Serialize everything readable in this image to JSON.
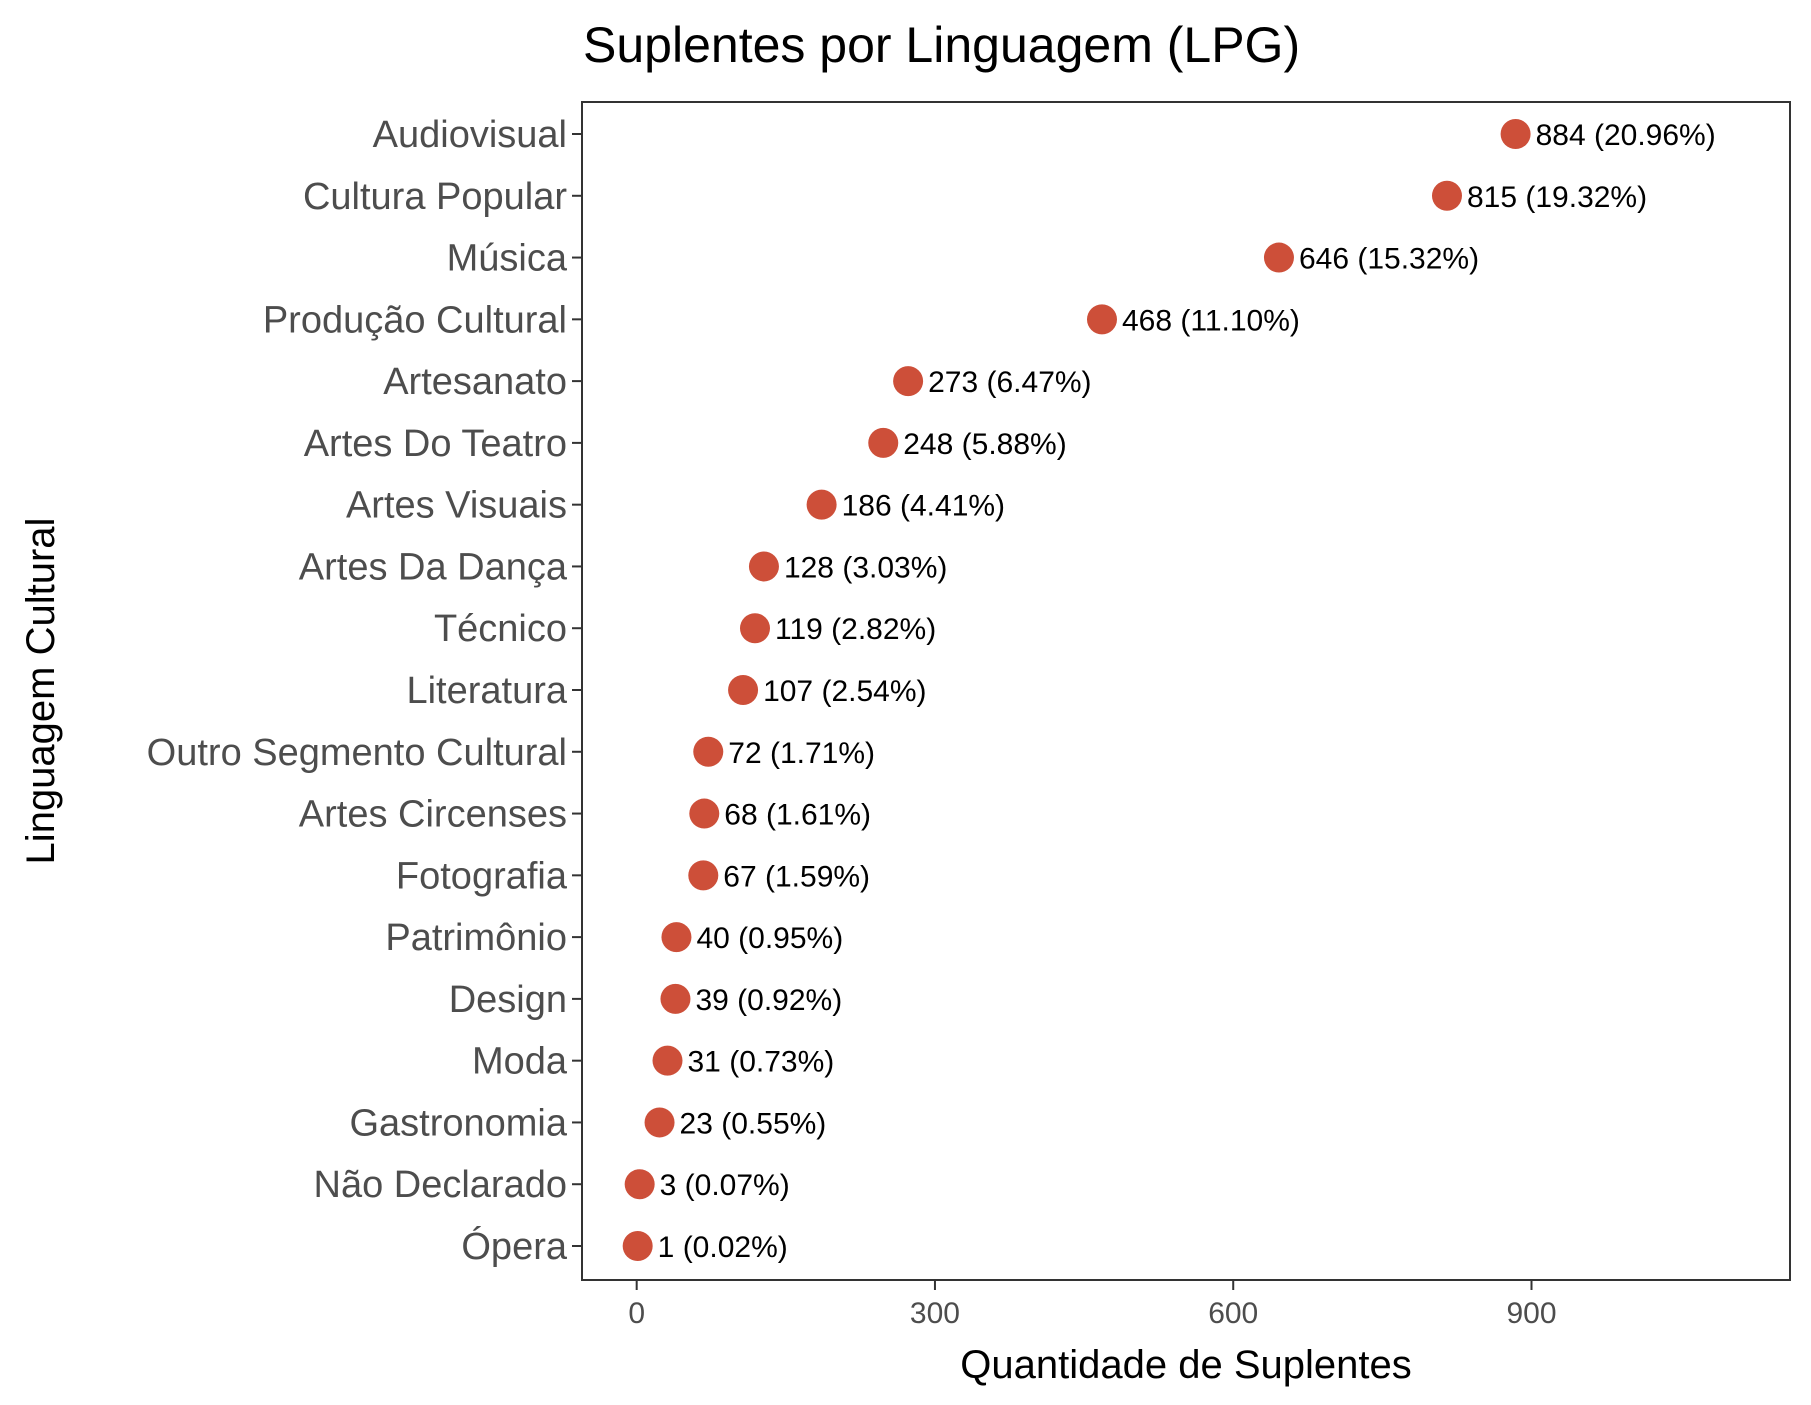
{
  "chart_data": {
    "type": "scatter",
    "title": "Suplentes por Linguagem (LPG)",
    "xlabel": "Quantidade de Suplentes",
    "ylabel": "Linguagem Cultural",
    "xlim": [
      -55,
      1160
    ],
    "x_ticks": [
      0,
      300,
      600,
      900
    ],
    "grid": false,
    "legend": "none",
    "point_color": "#cd4f39",
    "categories": [
      "Audiovisual",
      "Cultura Popular",
      "Música",
      "Produção Cultural",
      "Artesanato",
      "Artes Do Teatro",
      "Artes Visuais",
      "Artes Da Dança",
      "Técnico",
      "Literatura",
      "Outro Segmento Cultural",
      "Artes Circenses",
      "Fotografia",
      "Patrimônio",
      "Design",
      "Moda",
      "Gastronomia",
      "Não Declarado",
      "Ópera"
    ],
    "values": [
      884,
      815,
      646,
      468,
      273,
      248,
      186,
      128,
      119,
      107,
      72,
      68,
      67,
      40,
      39,
      31,
      23,
      3,
      1
    ],
    "labels": [
      "884 (20.96%)",
      "815 (19.32%)",
      "646 (15.32%)",
      "468 (11.10%)",
      "273 (6.47%)",
      "248 (5.88%)",
      "186 (4.41%)",
      "128 (3.03%)",
      "119 (2.82%)",
      "107 (2.54%)",
      "72 (1.71%)",
      "68 (1.61%)",
      "67 (1.59%)",
      "40 (0.95%)",
      "39 (0.92%)",
      "31 (0.73%)",
      "23 (0.55%)",
      "3 (0.07%)",
      "1 (0.02%)"
    ]
  }
}
